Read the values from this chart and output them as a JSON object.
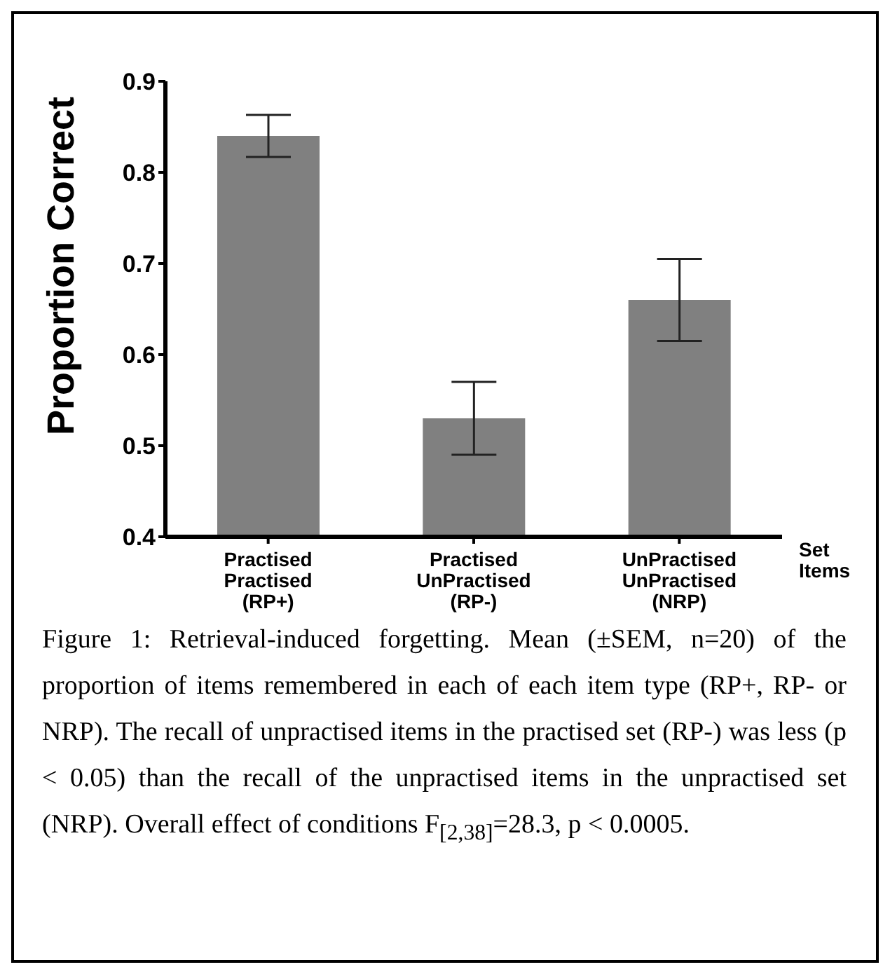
{
  "chart_data": {
    "type": "bar",
    "ylabel": "Proportion Correct",
    "xlabel": "Set\nItems",
    "categories": [
      "Practised\nPractised\n(RP+)",
      "Practised\nUnPractised\n(RP-)",
      "UnPractised\nUnPractised\n(NRP)"
    ],
    "values": [
      0.84,
      0.53,
      0.66
    ],
    "errors": [
      [
        0.817,
        0.863
      ],
      [
        0.49,
        0.57
      ],
      [
        0.615,
        0.705
      ]
    ],
    "color": "#808080",
    "ylim": [
      0.4,
      0.9
    ],
    "yticks": [
      0.4,
      0.5,
      0.6,
      0.7,
      0.8,
      0.9
    ],
    "grid": false,
    "legend": false,
    "annotations": [
      "Figure 1: Retrieval-induced forgetting. Mean (±SEM, n=20) of the proportion of items remembered in each of each item type (RP+, RP- or NRP). The recall of unpractised items in the practised set (RP-) was less (p < 0.05) than the recall of the unpractised items in the unpractised set (NRP). Overall effect of conditions F$_{[2,38]}$=28.3, p < 0.0005."
    ]
  }
}
